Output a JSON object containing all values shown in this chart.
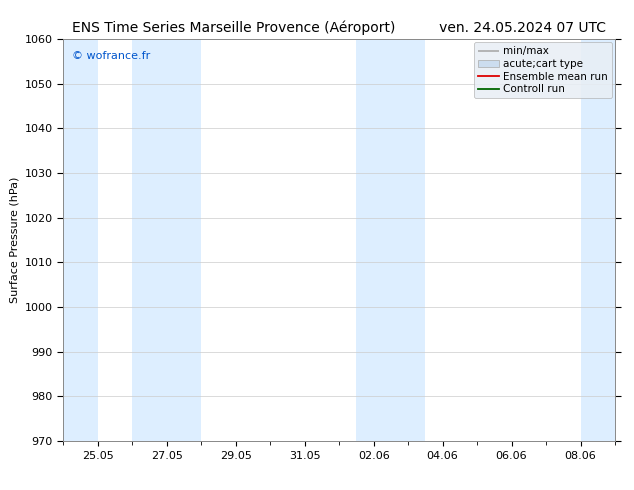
{
  "title_left": "ENS Time Series Marseille Provence (Aéroport)",
  "title_right": "ven. 24.05.2024 07 UTC",
  "ylabel": "Surface Pressure (hPa)",
  "ylim": [
    970,
    1060
  ],
  "yticks": [
    970,
    980,
    990,
    1000,
    1010,
    1020,
    1030,
    1040,
    1050,
    1060
  ],
  "xtick_labels": [
    "25.05",
    "27.05",
    "29.05",
    "31.05",
    "02.06",
    "04.06",
    "06.06",
    "08.06"
  ],
  "xtick_positions": [
    1,
    3,
    5,
    7,
    9,
    11,
    13,
    15
  ],
  "xlim": [
    0,
    16
  ],
  "watermark": "© wofrance.fr",
  "watermark_color": "#0055cc",
  "bg_color": "#ffffff",
  "plot_bg_color": "#ffffff",
  "shaded_bands": [
    {
      "xstart": 0,
      "xend": 1.0,
      "color": "#ddeeff"
    },
    {
      "xstart": 2.0,
      "xend": 4.0,
      "color": "#ddeeff"
    },
    {
      "xstart": 8.5,
      "xend": 10.5,
      "color": "#ddeeff"
    },
    {
      "xstart": 15.0,
      "xend": 16.0,
      "color": "#ddeeff"
    }
  ],
  "legend_entries": [
    {
      "label": "min/max",
      "type": "minmax",
      "color": "#aaaaaa"
    },
    {
      "label": "acute;cart type",
      "type": "fill",
      "color": "#ccddef"
    },
    {
      "label": "Ensemble mean run",
      "type": "line",
      "color": "#dd0000"
    },
    {
      "label": "Controll run",
      "type": "line",
      "color": "#006600"
    }
  ],
  "title_fontsize": 10,
  "axis_fontsize": 8,
  "tick_fontsize": 8,
  "legend_fontsize": 7.5,
  "grid_color": "#cccccc",
  "spine_color": "#888888"
}
